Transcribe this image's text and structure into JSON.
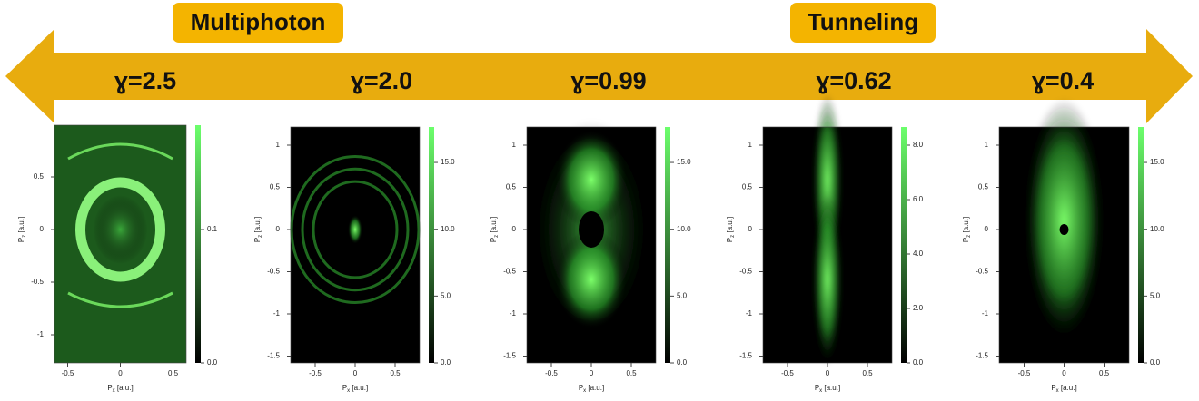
{
  "header": {
    "left_label": "Multiphoton",
    "right_label": "Tunneling"
  },
  "axis_labels": {
    "y_main": "P",
    "y_sub": "z",
    "x_main": "P",
    "x_sub": "x",
    "unit": " [a.u.]"
  },
  "panels": [
    {
      "gamma": "ɣ=2.5",
      "y_ticks": [
        "0.5",
        "0",
        "-0.5",
        "-1"
      ],
      "x_ticks": [
        "-0.5",
        "0",
        "0.5"
      ],
      "colorbar_ticks": [
        "0.1",
        "0.0"
      ]
    },
    {
      "gamma": "ɣ=2.0",
      "y_ticks": [
        "1",
        "0.5",
        "0",
        "-0.5",
        "-1",
        "-1.5"
      ],
      "x_ticks": [
        "-0.5",
        "0",
        "0.5"
      ],
      "colorbar_ticks": [
        "15.0",
        "10.0",
        "5.0",
        "0.0"
      ]
    },
    {
      "gamma": "ɣ=0.99",
      "y_ticks": [
        "1",
        "0.5",
        "0",
        "-0.5",
        "-1",
        "-1.5"
      ],
      "x_ticks": [
        "-0.5",
        "0",
        "0.5"
      ],
      "colorbar_ticks": [
        "15.0",
        "10.0",
        "5.0",
        "0.0"
      ]
    },
    {
      "gamma": "ɣ=0.62",
      "y_ticks": [
        "1",
        "0.5",
        "0",
        "-0.5",
        "-1",
        "-1.5"
      ],
      "x_ticks": [
        "-0.5",
        "0",
        "0.5"
      ],
      "colorbar_ticks": [
        "8.0",
        "6.0",
        "4.0",
        "2.0",
        "0.0"
      ]
    },
    {
      "gamma": "ɣ=0.4",
      "y_ticks": [
        "1",
        "0.5",
        "0",
        "-0.5",
        "-1",
        "-1.5"
      ],
      "x_ticks": [
        "-0.5",
        "0",
        "0.5"
      ],
      "colorbar_ticks": [
        "15.0",
        "10.0",
        "5.0",
        "0.0"
      ]
    }
  ]
}
